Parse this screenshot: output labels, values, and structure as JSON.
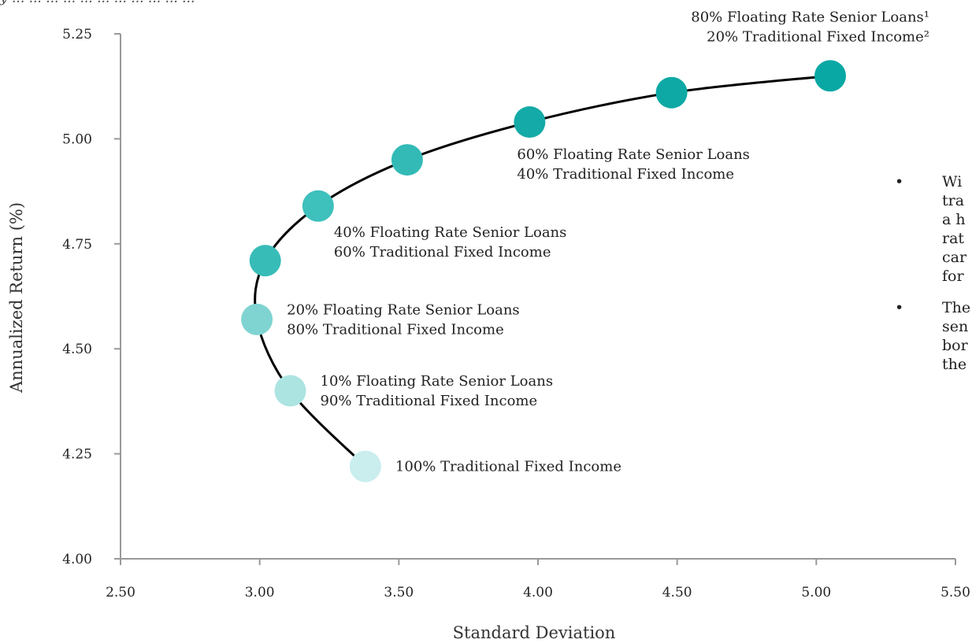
{
  "caption_fragment": "y ... ... ... ... ... ... ... ... ... ... ...",
  "chart_data": {
    "type": "scatter",
    "title": "",
    "xlabel": "Standard Deviation",
    "ylabel": "Annualized Return (%)",
    "xlim": [
      2.5,
      5.5
    ],
    "ylim": [
      4.0,
      5.25
    ],
    "xticks": [
      "2.50",
      "3.00",
      "3.50",
      "4.00",
      "4.50",
      "5.00",
      "5.50"
    ],
    "yticks": [
      "4.00",
      "4.25",
      "4.50",
      "4.75",
      "5.00",
      "5.25"
    ],
    "grid": false,
    "points": [
      {
        "x": 3.38,
        "y": 4.22,
        "color": "#c9eeed",
        "label": [
          "100% Traditional Fixed Income"
        ],
        "label_pos": "right"
      },
      {
        "x": 3.11,
        "y": 4.4,
        "color": "#ace4e2",
        "label": [
          "10% Floating Rate Senior Loans",
          "90% Traditional Fixed Income"
        ],
        "label_pos": "right"
      },
      {
        "x": 2.99,
        "y": 4.57,
        "color": "#7fd4d1",
        "label": [
          "20% Floating Rate Senior Loans",
          "80% Traditional Fixed Income"
        ],
        "label_pos": "right"
      },
      {
        "x": 3.02,
        "y": 4.71,
        "color": "#38bcb8",
        "label": [],
        "label_pos": "none"
      },
      {
        "x": 3.21,
        "y": 4.84,
        "color": "#3ec0bc",
        "label": [
          "40% Floating Rate Senior Loans",
          "60% Traditional Fixed Income"
        ],
        "label_pos": "below-right"
      },
      {
        "x": 3.53,
        "y": 4.95,
        "color": "#33bab6",
        "label": [],
        "label_pos": "none"
      },
      {
        "x": 3.97,
        "y": 5.04,
        "color": "#14aaa7",
        "label": [
          "60% Floating Rate Senior Loans",
          "40% Traditional Fixed Income"
        ],
        "label_pos": "below"
      },
      {
        "x": 4.48,
        "y": 5.11,
        "color": "#0ea9a5",
        "label": [],
        "label_pos": "none"
      },
      {
        "x": 5.05,
        "y": 5.15,
        "color": "#09a8a4",
        "label": [
          "80% Floating Rate Senior Loans¹",
          "20% Traditional Fixed Income²"
        ],
        "label_pos": "above"
      }
    ],
    "curve": {
      "color": "#000000"
    }
  },
  "side_bullets": [
    {
      "bullet": "•",
      "lines": [
        "Wi",
        "tra",
        "a h",
        "rat",
        "car",
        "for"
      ]
    },
    {
      "bullet": "•",
      "lines": [
        "The",
        "sen",
        "bor",
        "the"
      ]
    }
  ]
}
